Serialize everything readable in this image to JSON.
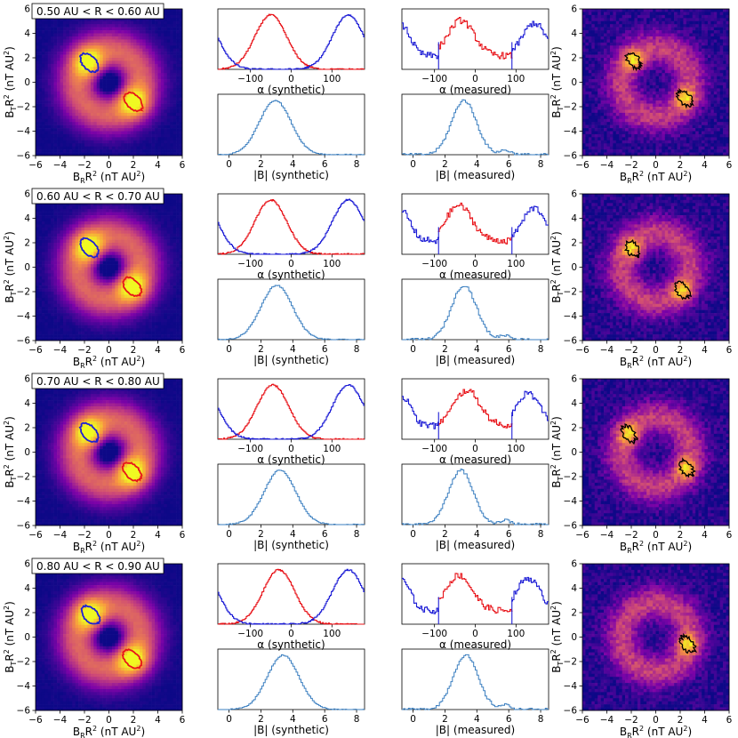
{
  "chart_data": {
    "type": "heatmap",
    "panel_columns": [
      {
        "name": "synthetic map",
        "xlabel": "B_R R^2 (nT AU^2)",
        "ylabel": "B_T R^2 (nT AU^2)",
        "xlim": [
          -6,
          6
        ],
        "ylim": [
          -6,
          6
        ],
        "xticks": [
          -6,
          -4,
          -2,
          0,
          2,
          4,
          6
        ],
        "yticks": [
          -6,
          -4,
          -2,
          0,
          2,
          4,
          6
        ]
      },
      {
        "name": "alpha synthetic",
        "xlabel": "α (synthetic)",
        "xticks": [
          -100,
          0,
          100
        ]
      },
      {
        "name": "alpha measured",
        "xlabel": "α (measured)",
        "xticks": [
          -100,
          0,
          100
        ]
      },
      {
        "name": "measured map",
        "xlabel": "B_R R^2 (nT AU^2)",
        "ylabel": "B_T R^2 (nT AU^2)",
        "xlim": [
          -6,
          6
        ],
        "ylim": [
          -6,
          6
        ]
      }
    ],
    "magnitude_panels": {
      "synthetic_xlabel": "|B| (synthetic)",
      "measured_xlabel": "|B| (measured)",
      "xticks": [
        0,
        2,
        4,
        6,
        8
      ]
    },
    "rows": [
      {
        "bin_label": "0.50 AU < R < 0.60 AU",
        "synthetic_blobs": {
          "blue_center": [
            -1.6,
            1.6
          ],
          "red_center": [
            2.0,
            -1.6
          ]
        },
        "alpha_synthetic": {
          "red_peak": -50,
          "blue_peak": 140
        },
        "alpha_measured": {
          "red_peak": -35,
          "blue_peak": 145
        },
        "B_synthetic_peak": 2.9,
        "B_measured_peak": 3.2,
        "measured_contours": [
          [
            -1.8,
            1.8
          ],
          [
            2.4,
            -1.3
          ]
        ]
      },
      {
        "bin_label": "0.60 AU < R < 0.70 AU",
        "synthetic_blobs": {
          "blue_center": [
            -1.6,
            1.6
          ],
          "red_center": [
            1.9,
            -1.6
          ]
        },
        "alpha_synthetic": {
          "red_peak": -50,
          "blue_peak": 140
        },
        "alpha_measured": {
          "red_peak": -40,
          "blue_peak": 145
        },
        "B_synthetic_peak": 3.0,
        "B_measured_peak": 3.2,
        "measured_contours": [
          [
            -1.9,
            1.5
          ],
          [
            2.2,
            -1.9
          ]
        ]
      },
      {
        "bin_label": "0.70 AU < R < 0.80 AU",
        "synthetic_blobs": {
          "blue_center": [
            -1.6,
            1.6
          ],
          "red_center": [
            1.9,
            -1.6
          ]
        },
        "alpha_synthetic": {
          "red_peak": -45,
          "blue_peak": 140
        },
        "alpha_measured": {
          "red_peak": -20,
          "blue_peak": 130
        },
        "B_synthetic_peak": 3.2,
        "B_measured_peak": 3.0,
        "measured_contours": [
          [
            -2.2,
            1.5
          ],
          [
            2.5,
            -1.3
          ]
        ]
      },
      {
        "bin_label": "0.80 AU < R < 0.90 AU",
        "synthetic_blobs": {
          "blue_center": [
            -1.5,
            1.8
          ],
          "red_center": [
            1.9,
            -1.8
          ]
        },
        "alpha_synthetic": {
          "red_peak": -30,
          "blue_peak": 140
        },
        "alpha_measured": {
          "red_peak": -40,
          "blue_peak": 130
        },
        "B_synthetic_peak": 3.4,
        "B_measured_peak": 3.3,
        "measured_contours": [
          [
            2.6,
            -0.6
          ]
        ]
      }
    ]
  },
  "colors": {
    "red_series": "#e8141a",
    "blue_series": "#1f1fd6",
    "hist_line": "#3b7fc0",
    "contour": "#000000"
  }
}
